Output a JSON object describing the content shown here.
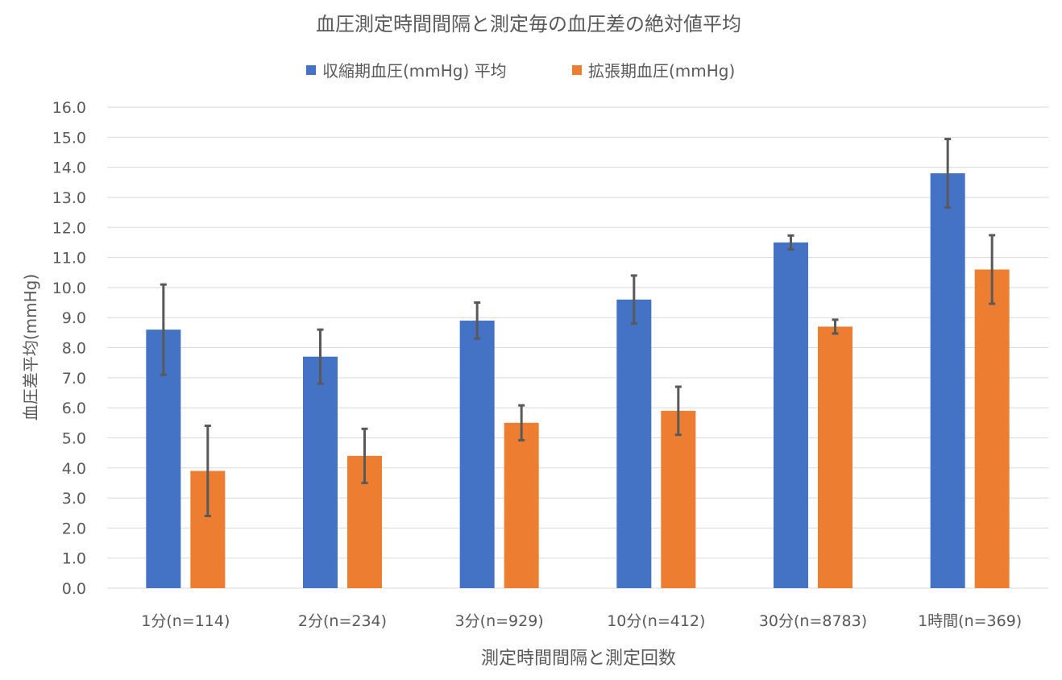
{
  "chart_data": {
    "type": "bar",
    "title": "血圧測定時間間隔と測定毎の血圧差の絶対値平均",
    "xlabel": "測定時間間隔と測定回数",
    "ylabel": "血圧差平均(mmHg)",
    "ylim": [
      0,
      16
    ],
    "ytick_step": 1,
    "grid": true,
    "legend_position": "top",
    "categories": [
      "1分(n=114)",
      "2分(n=234)",
      "3分(n=929)",
      "10分(n=412)",
      "30分(n=8783)",
      "1時間(n=369)"
    ],
    "series": [
      {
        "name": "収縮期血圧(mmHg) 平均",
        "color": "#4472C4",
        "values": [
          8.6,
          7.7,
          8.9,
          9.6,
          11.5,
          13.8
        ],
        "errors": [
          1.5,
          0.9,
          0.6,
          0.8,
          0.23,
          1.14
        ]
      },
      {
        "name": "拡張期血圧(mmHg)",
        "color": "#ED7D31",
        "values": [
          3.9,
          4.4,
          5.5,
          5.9,
          8.7,
          10.6
        ],
        "errors": [
          1.5,
          0.9,
          0.58,
          0.8,
          0.23,
          1.14
        ]
      }
    ],
    "error_bar_color": "#595959"
  }
}
